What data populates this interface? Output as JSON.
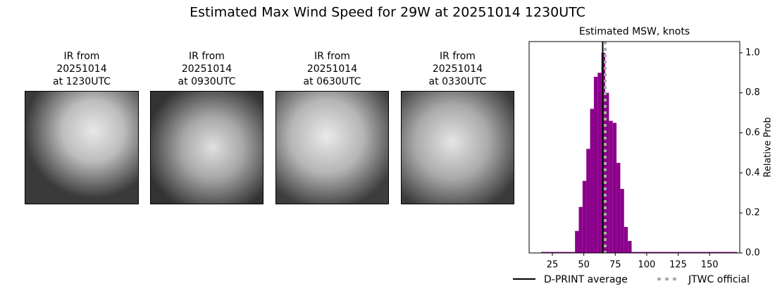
{
  "title": "Estimated Max Wind Speed for 29W at 20251014 1230UTC",
  "panels": [
    {
      "lines": [
        "IR from",
        "20251014",
        "at 1230UTC"
      ]
    },
    {
      "lines": [
        "IR from",
        "20251014",
        "at 0930UTC"
      ]
    },
    {
      "lines": [
        "IR from",
        "20251014",
        "at 0630UTC"
      ]
    },
    {
      "lines": [
        "IR from",
        "20251014",
        "at 0330UTC"
      ]
    }
  ],
  "chart_data": {
    "type": "histogram",
    "title": "Estimated MSW, knots",
    "ylabel": "Relative Prob",
    "color": "#8b008b",
    "bins": [
      16,
      19,
      22,
      25,
      28,
      31,
      34,
      37,
      40,
      43,
      46,
      49,
      52,
      55,
      58,
      61,
      64,
      67,
      70,
      73,
      76,
      79,
      82,
      85,
      88,
      91,
      94,
      97,
      100,
      103,
      106,
      109,
      112,
      115,
      118,
      121,
      124,
      127,
      130,
      133,
      136,
      139,
      142,
      145,
      148,
      151,
      154,
      157,
      160,
      163,
      166,
      169,
      172
    ],
    "counts": [
      0.005,
      0.005,
      0.005,
      0.005,
      0.005,
      0.005,
      0.005,
      0.005,
      0.005,
      0.11,
      0.23,
      0.36,
      0.52,
      0.72,
      0.88,
      0.9,
      1.0,
      0.8,
      0.66,
      0.65,
      0.45,
      0.32,
      0.13,
      0.06,
      0.005,
      0.005,
      0.005,
      0.005,
      0.005,
      0.005,
      0.005,
      0.005,
      0.005,
      0.005,
      0.005,
      0.005,
      0.005,
      0.005,
      0.005,
      0.005,
      0.005,
      0.005,
      0.005,
      0.005,
      0.005,
      0.005,
      0.005,
      0.005,
      0.005,
      0.005,
      0.005,
      0.005
    ],
    "xlim": [
      6.5,
      174
    ],
    "ylim": [
      0,
      1.056
    ],
    "xticks": [
      25,
      50,
      75,
      100,
      125,
      150
    ],
    "yticks": [
      {
        "value": 0,
        "label": "0.0"
      },
      0.2,
      0.4,
      0.6,
      0.8,
      {
        "value": 1,
        "label": "1.0"
      }
    ],
    "reference_lines": [
      {
        "name": "D-PRINT average",
        "value": 65,
        "color": "#000000",
        "style": "solid"
      },
      {
        "name": "JTWC official",
        "value": 67,
        "color": "#aaaaaa",
        "style": "dotted"
      }
    ]
  }
}
